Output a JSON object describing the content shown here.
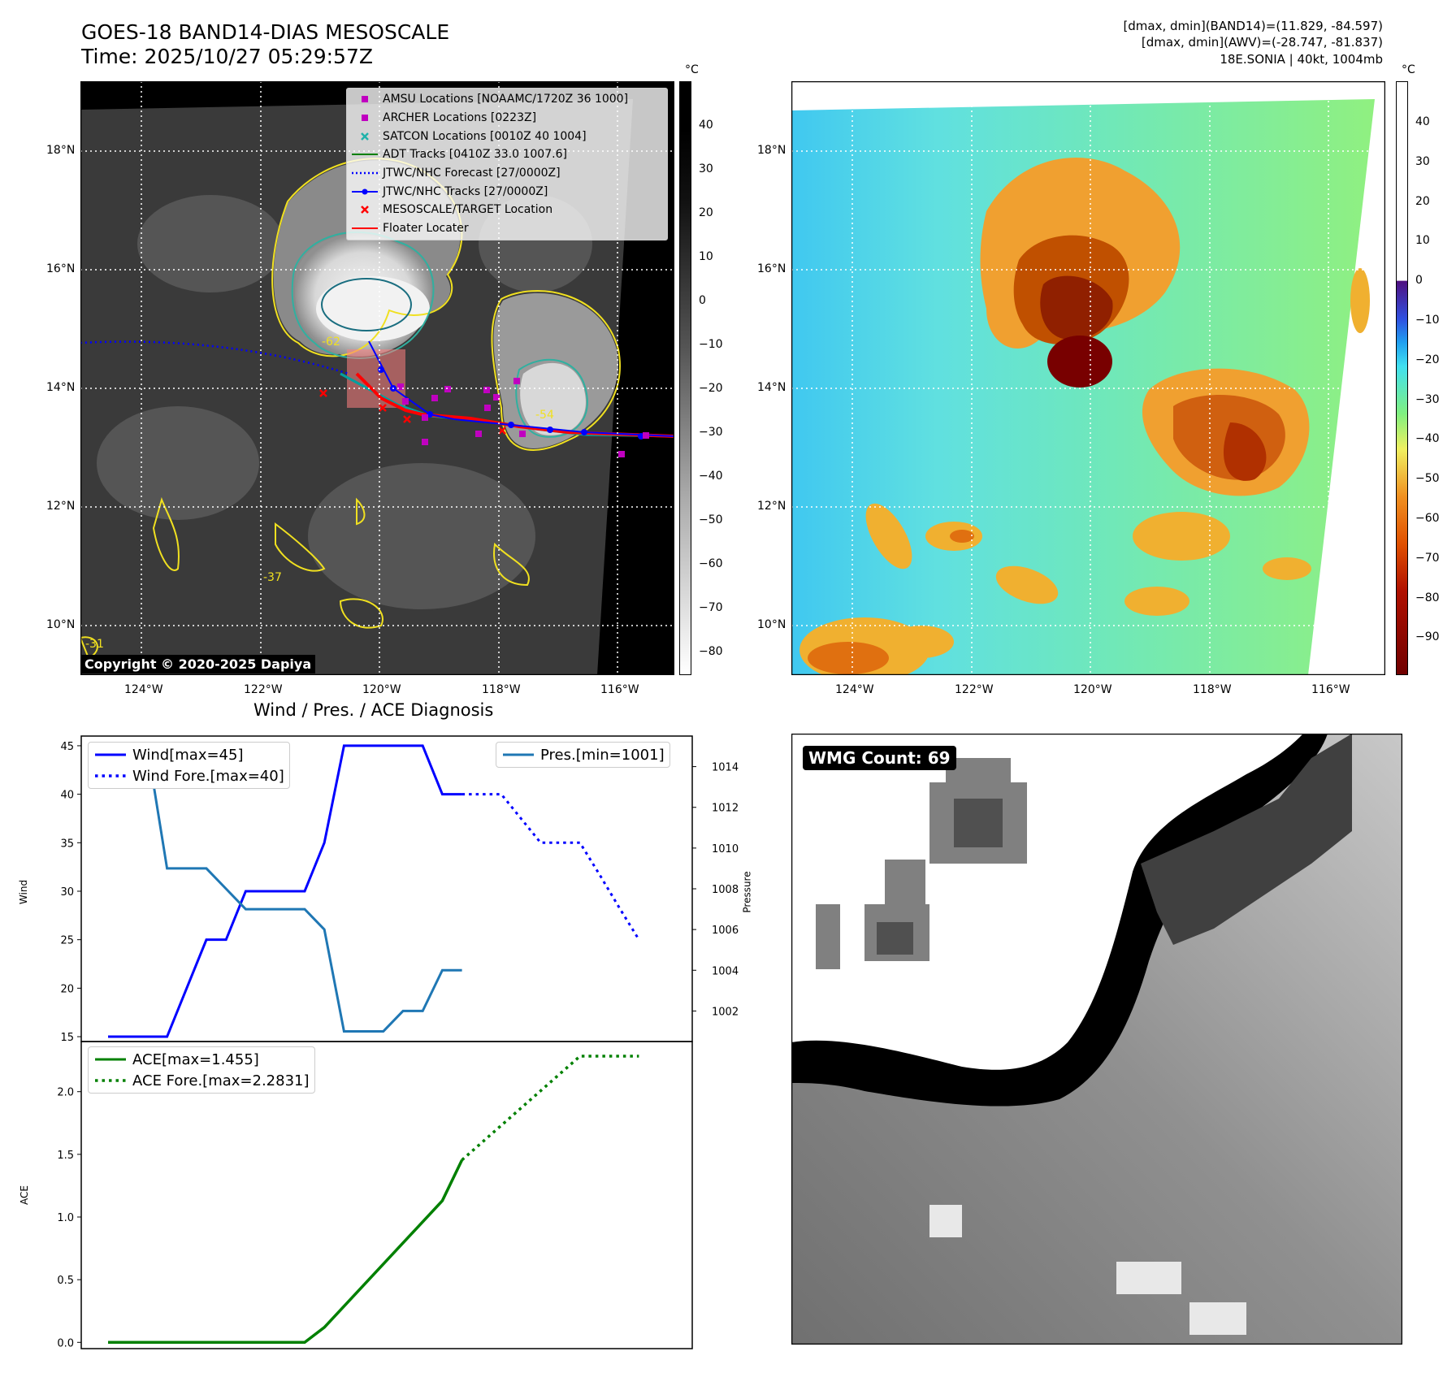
{
  "header": {
    "title_line1": "GOES-18 BAND14-DIAS MESOSCALE",
    "title_line2": "Time: 2025/10/27 05:29:57Z",
    "info_line1": "[dmax, dmin](BAND14)=(11.829, -84.597)",
    "info_line2": "[dmax, dmin](AWV)=(-28.747, -81.837)",
    "info_line3": "18E.SONIA | 40kt, 1004mb"
  },
  "ir_panel": {
    "colorbar_unit": "°C",
    "colorbar_ticks": [
      "40",
      "30",
      "20",
      "10",
      "0",
      "−10",
      "−20",
      "−30",
      "−40",
      "−50",
      "−60",
      "−70",
      "−80"
    ],
    "copyright": "Copyright © 2020-2025 Dapiya",
    "lat_labels": [
      "18°N",
      "16°N",
      "14°N",
      "12°N",
      "10°N"
    ],
    "lon_labels": [
      "124°W",
      "122°W",
      "120°W",
      "118°W",
      "116°W"
    ],
    "contour_labels": [
      "-62",
      "-54",
      "-37",
      "-31"
    ],
    "legend": [
      {
        "label": "AMSU Locations [NOAAMC/1720Z 36 1000]",
        "color": "#c000c0",
        "marker": "square"
      },
      {
        "label": "ARCHER Locations [0223Z]",
        "color": "#c000c0",
        "marker": "square"
      },
      {
        "label": "SATCON Locations [0010Z 40 1004]",
        "color": "#20b2aa",
        "marker": "x"
      },
      {
        "label": "ADT Tracks [0410Z 33.0 1007.6]",
        "color": "#008000",
        "marker": "line"
      },
      {
        "label": "JTWC/NHC Forecast [27/0000Z]",
        "color": "#0000ff",
        "marker": "dotted"
      },
      {
        "label": "JTWC/NHC Tracks [27/0000Z]",
        "color": "#0000ff",
        "marker": "line-dot"
      },
      {
        "label": "MESOSCALE/TARGET Location",
        "color": "#ff0000",
        "marker": "x"
      },
      {
        "label": "Floater Locater",
        "color": "#ff0000",
        "marker": "line"
      }
    ]
  },
  "awv_panel": {
    "colorbar_unit": "°C",
    "colorbar_ticks": [
      "40",
      "30",
      "20",
      "10",
      "0",
      "−10",
      "−20",
      "−30",
      "−40",
      "−50",
      "−60",
      "−70",
      "−80",
      "−90"
    ],
    "lat_labels": [
      "18°N",
      "16°N",
      "14°N",
      "12°N",
      "10°N"
    ],
    "lon_labels": [
      "124°W",
      "122°W",
      "120°W",
      "118°W",
      "116°W"
    ]
  },
  "wmg_panel": {
    "label": "WMG Count: 69"
  },
  "chart_data": [
    {
      "type": "line",
      "title": "Wind / Pres. / ACE Diagnosis",
      "ylabel": "Wind",
      "ylabel2": "Pressure",
      "ylim": [
        14.5,
        46
      ],
      "ylim2": [
        1000.5,
        1015.5
      ],
      "yticks": [
        15,
        20,
        25,
        30,
        35,
        40,
        45
      ],
      "yticks2": [
        1002,
        1004,
        1006,
        1008,
        1010,
        1012,
        1014
      ],
      "x": [
        0,
        1,
        2,
        3,
        4,
        5,
        6,
        7,
        8,
        9,
        10,
        11,
        12,
        13,
        14,
        15,
        16,
        17,
        18,
        19,
        20,
        21,
        22,
        23,
        24,
        25,
        26,
        27
      ],
      "series": [
        {
          "name": "Wind[max=45]",
          "color": "#0000ff",
          "style": "solid",
          "axis": "left",
          "x": [
            0,
            3,
            4,
            5,
            6,
            7,
            8,
            9,
            10,
            11,
            12,
            13,
            14,
            15,
            16,
            17,
            18
          ],
          "values": [
            15,
            15,
            20,
            25,
            25,
            30,
            30,
            30,
            30,
            35,
            45,
            45,
            45,
            45,
            45,
            40,
            40
          ]
        },
        {
          "name": "Wind Fore.[max=40]",
          "color": "#0000ff",
          "style": "dotted",
          "axis": "left",
          "x": [
            18,
            20,
            22,
            23,
            24,
            25,
            26,
            27
          ],
          "values": [
            40,
            40,
            35,
            35,
            35,
            31.7,
            28.3,
            25
          ]
        },
        {
          "name": "Pres.[min=1001]",
          "color": "#1f77b4",
          "style": "solid",
          "axis": "right",
          "x": [
            0,
            2,
            3,
            4,
            5,
            6,
            7,
            8,
            9,
            10,
            11,
            12,
            13,
            14,
            15,
            16,
            17,
            18
          ],
          "values": [
            1015,
            1015,
            1009,
            1009,
            1009,
            1008,
            1007,
            1007,
            1007,
            1007,
            1006,
            1001,
            1001,
            1001,
            1002,
            1002,
            1004,
            1004
          ]
        }
      ]
    },
    {
      "type": "line",
      "ylabel": "ACE",
      "ylim": [
        -0.05,
        2.4
      ],
      "yticks": [
        "0.0",
        "0.5",
        "1.0",
        "1.5",
        "2.0"
      ],
      "x": [
        0,
        1,
        2,
        3,
        4,
        5,
        6,
        7,
        8,
        9,
        10,
        11,
        12,
        13,
        14,
        15,
        16,
        17,
        18,
        19,
        20,
        21,
        22,
        23,
        24,
        25,
        26,
        27
      ],
      "series": [
        {
          "name": "ACE[max=1.455]",
          "color": "#008000",
          "style": "solid",
          "x": [
            0,
            10,
            11,
            17,
            18
          ],
          "values": [
            0.0,
            0.0,
            0.12,
            1.13,
            1.455
          ]
        },
        {
          "name": "ACE Fore.[max=2.2831]",
          "color": "#008000",
          "style": "dotted",
          "x": [
            18,
            24,
            27
          ],
          "values": [
            1.455,
            2.2831,
            2.2831
          ]
        }
      ]
    }
  ]
}
